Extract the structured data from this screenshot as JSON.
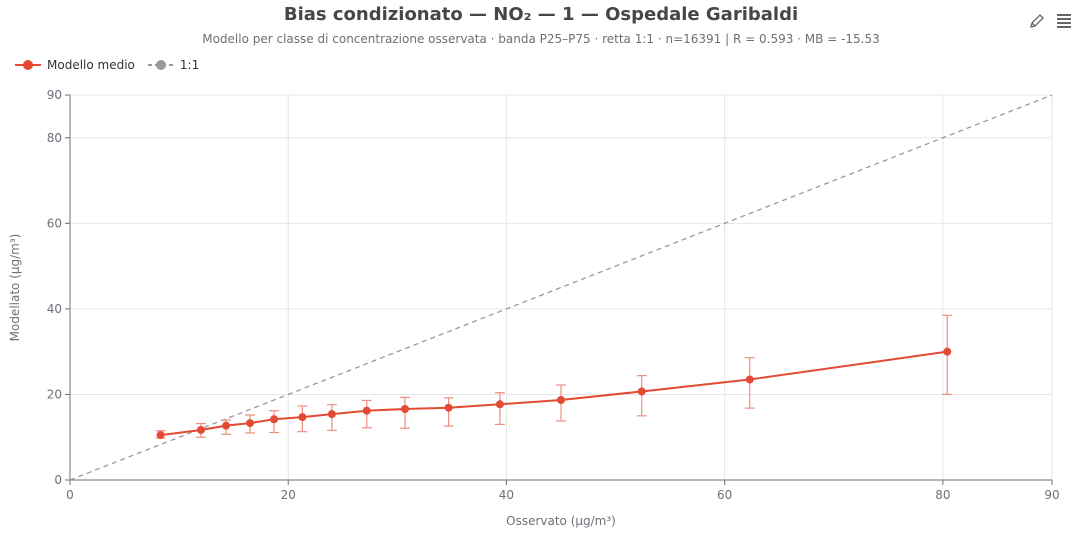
{
  "header": {
    "title": "Bias condizionato — NO₂ — 1 — Ospedale Garibaldi",
    "subtitle": "Modello per classe di concentrazione osservata · banda P25–P75 · retta 1:1 · n=16391  |  R = 0.593  ·  MB = -15.53"
  },
  "toolbox": {
    "edit_icon": "pencil-icon",
    "data_view_icon": "data-view-icon"
  },
  "legend": [
    {
      "label": "Modello medio",
      "color": "#e24a33",
      "style": "line-dot"
    },
    {
      "label": "1:1",
      "color": "#999999",
      "style": "dashed-dot"
    }
  ],
  "chart_data": {
    "type": "line",
    "xlabel": "Osservato (µg/m³)",
    "ylabel": "Modellato (µg/m³)",
    "xlim": [
      0,
      90
    ],
    "ylim": [
      0,
      90
    ],
    "x_ticks": [
      "0",
      "20",
      "40",
      "60",
      "80",
      "90"
    ],
    "y_ticks": [
      "0",
      "20",
      "40",
      "60",
      "80",
      "90"
    ],
    "grid": true,
    "legend_position": "top-left",
    "series": [
      {
        "name": "Modello medio",
        "color": "#e24a33",
        "x": [
          8.3,
          12.0,
          14.3,
          16.5,
          18.7,
          21.3,
          24.0,
          27.2,
          30.7,
          34.7,
          39.4,
          45.0,
          52.4,
          62.3,
          80.4
        ],
        "y": [
          10.5,
          11.7,
          12.7,
          13.3,
          14.2,
          14.7,
          15.4,
          16.2,
          16.6,
          16.9,
          17.7,
          18.7,
          20.7,
          23.5,
          30.0
        ],
        "p25": [
          9.8,
          10.0,
          10.7,
          11.0,
          11.1,
          11.3,
          11.6,
          12.2,
          12.1,
          12.6,
          13.0,
          13.8,
          15.0,
          16.8,
          20.0
        ],
        "p75": [
          11.5,
          13.2,
          14.0,
          15.2,
          16.2,
          17.3,
          17.6,
          18.6,
          19.3,
          19.2,
          20.4,
          22.2,
          24.4,
          28.6,
          38.5
        ]
      },
      {
        "name": "1:1",
        "color": "#999999",
        "x": [
          0,
          90
        ],
        "y": [
          0,
          90
        ]
      }
    ]
  }
}
